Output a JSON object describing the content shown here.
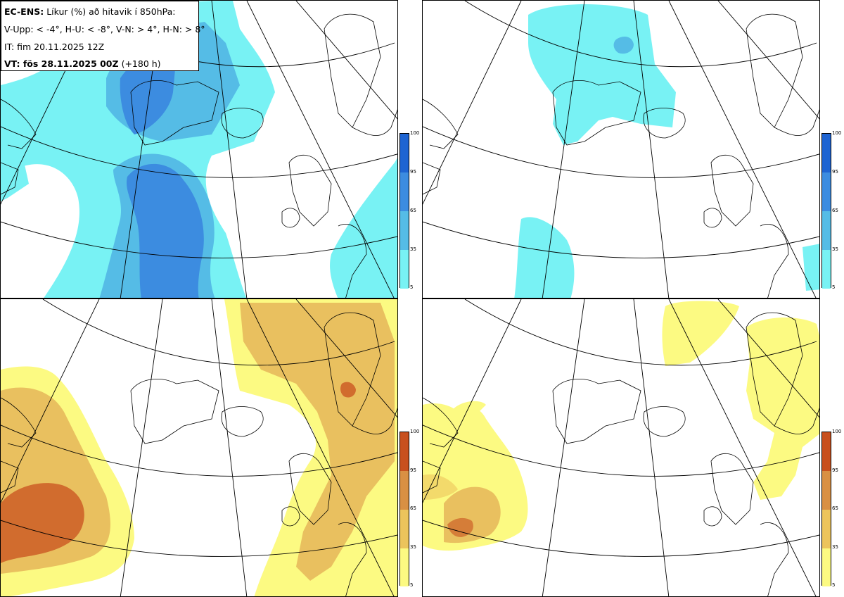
{
  "legend": {
    "model": "EC-ENS:",
    "title": "Líkur (%) að hitavik í 850hPa:",
    "criteria": "V-Upp: < -4°, H-U: < -8°, V-N: > 4°, H-N: > 8°",
    "init_time": "IT: fim 20.11.2025 12Z",
    "valid_prefix": "VT: fös 28.11.2025 00Z",
    "valid_suffix": "(+180 h)"
  },
  "panels": [
    {
      "id": "V-Upp",
      "scheme": "cold"
    },
    {
      "id": "H-U",
      "scheme": "cold"
    },
    {
      "id": "V-N",
      "scheme": "warm"
    },
    {
      "id": "H-N",
      "scheme": "warm"
    }
  ],
  "colorbar": {
    "ticks": [
      "100",
      "95",
      "65",
      "35",
      "5"
    ],
    "cold_colors": [
      "#1e64d2",
      "#3c8ce0",
      "#55bce6",
      "#78f2f4"
    ],
    "warm_colors": [
      "#c8501e",
      "#d99043",
      "#ecc45c",
      "#fcfa82"
    ]
  }
}
